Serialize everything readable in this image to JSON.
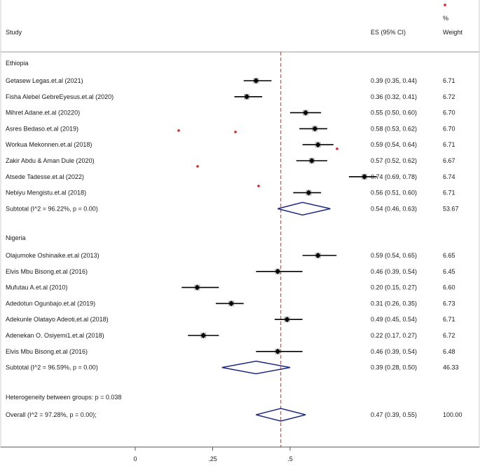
{
  "chart_data": {
    "type": "forest",
    "header": {
      "study": "Study",
      "es": "ES (95% CI)",
      "pct": "%",
      "weight": "Weight"
    },
    "x_ticks": [
      "0",
      ".25",
      ".5"
    ],
    "x_tick_values": [
      0,
      0.25,
      0.5
    ],
    "xlim": [
      -0.08,
      0.84
    ],
    "reference_line": 0.47,
    "groups": [
      {
        "name": "Ethiopia",
        "studies": [
          {
            "label": "Getasew Legas.et.al (2021)",
            "es": 0.39,
            "lo": 0.35,
            "hi": 0.44,
            "ci": "0.39 (0.35, 0.44)",
            "weight": "6.71"
          },
          {
            "label": "Fisha Alebel GebreEyesus.et.al (2020)",
            "es": 0.36,
            "lo": 0.32,
            "hi": 0.41,
            "ci": "0.36 (0.32, 0.41)",
            "weight": "6.72"
          },
          {
            "label": "Mihret Adane.et.al (20220)",
            "es": 0.55,
            "lo": 0.5,
            "hi": 0.6,
            "ci": "0.55 (0.50, 0.60)",
            "weight": "6.70"
          },
          {
            "label": "Asres Bedaso.et.al (2019)",
            "es": 0.58,
            "lo": 0.53,
            "hi": 0.62,
            "ci": "0.58 (0.53, 0.62)",
            "weight": "6.70"
          },
          {
            "label": "Workua Mekonnen.et.al (2018)",
            "es": 0.59,
            "lo": 0.54,
            "hi": 0.64,
            "ci": "0.59 (0.54, 0.64)",
            "weight": "6.71"
          },
          {
            "label": "Zakir Abdu & Aman Dule (2020)",
            "es": 0.57,
            "lo": 0.52,
            "hi": 0.62,
            "ci": "0.57 (0.52, 0.62)",
            "weight": "6.67"
          },
          {
            "label": "Atsede Tadesse.et.al (2022)",
            "es": 0.74,
            "lo": 0.69,
            "hi": 0.78,
            "ci": "0.74 (0.69, 0.78)",
            "weight": "6.74"
          },
          {
            "label": "Nebiyu Mengistu.et.al (2018)",
            "es": 0.56,
            "lo": 0.51,
            "hi": 0.6,
            "ci": "0.56 (0.51, 0.60)",
            "weight": "6.71"
          }
        ],
        "subtotal": {
          "label": "Subtotal  (I^2 = 96.22%, p = 0.00)",
          "es": 0.54,
          "lo": 0.46,
          "hi": 0.63,
          "ci": "0.54 (0.46, 0.63)",
          "weight": "53.67"
        }
      },
      {
        "name": "Nigeria",
        "studies": [
          {
            "label": "Olajumoke Oshinaike.et.al (2013)",
            "es": 0.59,
            "lo": 0.54,
            "hi": 0.65,
            "ci": "0.59 (0.54, 0.65)",
            "weight": "6.65"
          },
          {
            "label": "Elvis Mbu Bisong.et.al (2016)",
            "es": 0.46,
            "lo": 0.39,
            "hi": 0.54,
            "ci": "0.46 (0.39, 0.54)",
            "weight": "6.45"
          },
          {
            "label": "Mufutau A.et.al (2010)",
            "es": 0.2,
            "lo": 0.15,
            "hi": 0.27,
            "ci": "0.20 (0.15, 0.27)",
            "weight": "6.60"
          },
          {
            "label": "Adedotun Ogunbajo.et.al (2019)",
            "es": 0.31,
            "lo": 0.26,
            "hi": 0.35,
            "ci": "0.31 (0.26, 0.35)",
            "weight": "6.73"
          },
          {
            "label": "Adekunle Olatayo Adeoti,et.al (2018)",
            "es": 0.49,
            "lo": 0.45,
            "hi": 0.54,
            "ci": "0.49 (0.45, 0.54)",
            "weight": "6.71"
          },
          {
            "label": "Adenekan O. Osiyemi1.et.al (2018)",
            "es": 0.22,
            "lo": 0.17,
            "hi": 0.27,
            "ci": "0.22 (0.17, 0.27)",
            "weight": "6.72"
          },
          {
            "label": "Elvis Mbu Bisong.et.al (2016)",
            "es": 0.46,
            "lo": 0.39,
            "hi": 0.54,
            "ci": "0.46 (0.39, 0.54)",
            "weight": "6.48"
          }
        ],
        "subtotal": {
          "label": "Subtotal  (I^2 = 96.59%, p = 0.00)",
          "es": 0.39,
          "lo": 0.28,
          "hi": 0.5,
          "ci": "0.39 (0.28, 0.50)",
          "weight": "46.33"
        }
      }
    ],
    "heterogeneity": "Heterogeneity between groups: p = 0.038",
    "overall": {
      "label": "Overall  (I^2 = 97.28%, p = 0.00);",
      "es": 0.47,
      "lo": 0.39,
      "hi": 0.55,
      "ci": "0.47 (0.39, 0.55)",
      "weight": "100.00"
    },
    "colors": {
      "text": "#1a1a1a",
      "point": "#000000",
      "diamond": "#1f2a80",
      "reference": "#a23a3a",
      "axis": "#555555",
      "stray_dot": "#e02020"
    }
  }
}
